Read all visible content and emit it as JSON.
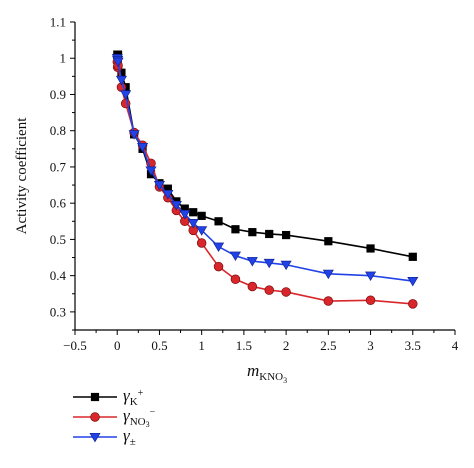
{
  "chart_data": {
    "type": "line",
    "title": "",
    "xlabel": {
      "main": "m",
      "sub": "KNO",
      "subsub": "3"
    },
    "ylabel": "Activity coefficient",
    "xlim": [
      -0.5,
      4
    ],
    "ylim": [
      0.25,
      1.1
    ],
    "xticks": [
      -0.5,
      0,
      0.5,
      1,
      1.5,
      2,
      2.5,
      3,
      3.5,
      4
    ],
    "xtick_labels": [
      "−0.5",
      "0",
      "0.5",
      "1",
      "1.5",
      "2",
      "2.5",
      "3",
      "3.5",
      "4"
    ],
    "yticks": [
      0.3,
      0.4,
      0.5,
      0.6,
      0.7,
      0.8,
      0.9,
      1.0,
      1.1
    ],
    "ytick_labels": [
      "0.3",
      "0.4",
      "0.5",
      "0.6",
      "0.7",
      "0.8",
      "0.9",
      "1",
      "1.1"
    ],
    "grid": false,
    "legend_placement": "bottom-left",
    "series": [
      {
        "name": "γK+",
        "legend": {
          "greek": "γ",
          "sub": "K",
          "sup": "+"
        },
        "color": "#000000",
        "marker": "square",
        "x": [
          0.001,
          0.005,
          0.01,
          0.05,
          0.1,
          0.2,
          0.3,
          0.4,
          0.5,
          0.6,
          0.7,
          0.8,
          0.9,
          1.0,
          1.2,
          1.4,
          1.6,
          1.8,
          2.0,
          2.5,
          3.0,
          3.5
        ],
        "y": [
          1.01,
          1.005,
          1.01,
          0.96,
          0.92,
          0.79,
          0.75,
          0.68,
          0.655,
          0.64,
          0.605,
          0.585,
          0.575,
          0.565,
          0.55,
          0.528,
          0.52,
          0.515,
          0.512,
          0.495,
          0.475,
          0.452
        ]
      },
      {
        "name": "γNO3−",
        "legend": {
          "greek": "γ",
          "sub": "NO",
          "subsub": "3",
          "sup": "−"
        },
        "color": "#d9262b",
        "marker": "circle",
        "x": [
          0.001,
          0.005,
          0.01,
          0.05,
          0.1,
          0.2,
          0.3,
          0.4,
          0.5,
          0.6,
          0.7,
          0.8,
          0.9,
          1.0,
          1.2,
          1.4,
          1.6,
          1.8,
          2.0,
          2.5,
          3.0,
          3.5
        ],
        "y": [
          0.99,
          0.975,
          0.98,
          0.92,
          0.875,
          0.795,
          0.76,
          0.71,
          0.645,
          0.615,
          0.58,
          0.55,
          0.525,
          0.49,
          0.425,
          0.39,
          0.37,
          0.36,
          0.355,
          0.33,
          0.332,
          0.322
        ]
      },
      {
        "name": "γ±",
        "legend": {
          "greek": "γ",
          "sub": "±"
        },
        "color": "#2142e6",
        "marker": "triangle-down",
        "x": [
          0.001,
          0.005,
          0.01,
          0.05,
          0.1,
          0.2,
          0.3,
          0.4,
          0.5,
          0.6,
          0.7,
          0.8,
          0.9,
          1.0,
          1.2,
          1.4,
          1.6,
          1.8,
          2.0,
          2.5,
          3.0,
          3.5
        ],
        "y": [
          1.0,
          0.995,
          0.99,
          0.94,
          0.9,
          0.79,
          0.755,
          0.69,
          0.65,
          0.625,
          0.595,
          0.57,
          0.545,
          0.525,
          0.48,
          0.455,
          0.44,
          0.435,
          0.43,
          0.405,
          0.4,
          0.385
        ]
      }
    ]
  }
}
